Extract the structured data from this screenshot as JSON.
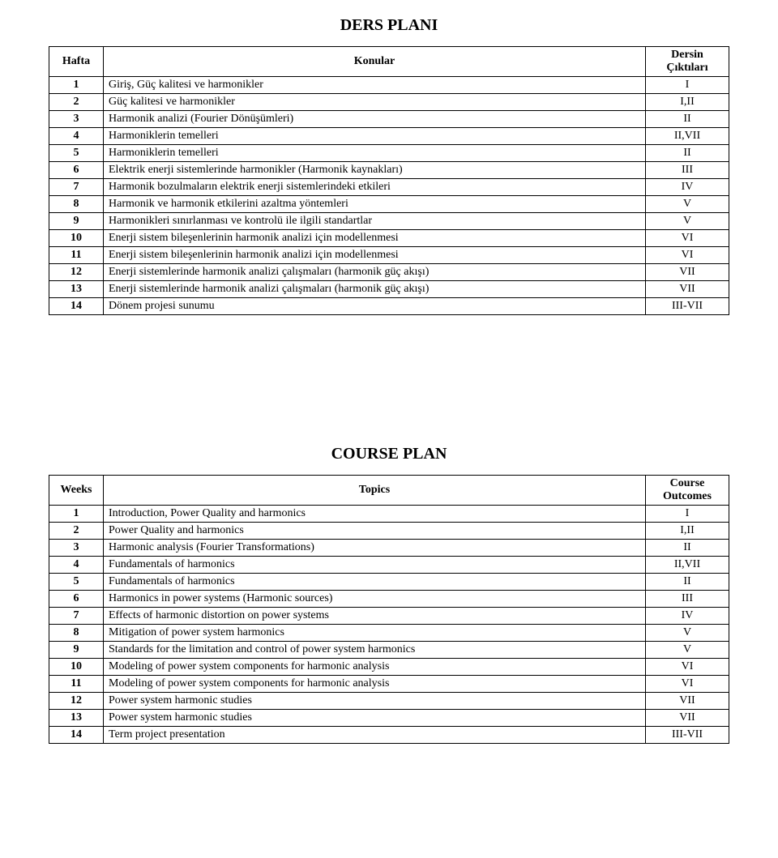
{
  "colors": {
    "background": "#ffffff",
    "text": "#000000",
    "border": "#000000"
  },
  "typography": {
    "font_family": "Times New Roman",
    "title_fontsize_pt": 15,
    "body_fontsize_pt": 11
  },
  "tables": {
    "ders": {
      "title": "DERS PLANI",
      "headers": {
        "num": "Hafta",
        "topic": "Konular",
        "outcome_line1": "Dersin",
        "outcome_line2": "Çıktıları"
      },
      "rows": [
        {
          "n": "1",
          "t": "Giriş, Güç kalitesi ve harmonikler",
          "o": "I"
        },
        {
          "n": "2",
          "t": "Güç kalitesi ve harmonikler",
          "o": "I,II"
        },
        {
          "n": "3",
          "t": "Harmonik analizi (Fourier Dönüşümleri)",
          "o": "II"
        },
        {
          "n": "4",
          "t": "Harmoniklerin temelleri",
          "o": "II,VII"
        },
        {
          "n": "5",
          "t": "Harmoniklerin temelleri",
          "o": "II"
        },
        {
          "n": "6",
          "t": "Elektrik enerji sistemlerinde harmonikler (Harmonik kaynakları)",
          "o": "III"
        },
        {
          "n": "7",
          "t": "Harmonik bozulmaların elektrik enerji sistemlerindeki etkileri",
          "o": "IV"
        },
        {
          "n": "8",
          "t": "Harmonik ve harmonik etkilerini azaltma yöntemleri",
          "o": "V"
        },
        {
          "n": "9",
          "t": "Harmonikleri sınırlanması ve kontrolü ile ilgili standartlar",
          "o": "V"
        },
        {
          "n": "10",
          "t": "Enerji sistem bileşenlerinin harmonik analizi için modellenmesi",
          "o": "VI"
        },
        {
          "n": "11",
          "t": "Enerji sistem bileşenlerinin harmonik analizi için modellenmesi",
          "o": "VI"
        },
        {
          "n": "12",
          "t": "Enerji sistemlerinde harmonik analizi çalışmaları (harmonik güç akışı)",
          "o": "VII"
        },
        {
          "n": "13",
          "t": "Enerji sistemlerinde harmonik analizi çalışmaları (harmonik güç akışı)",
          "o": "VII"
        },
        {
          "n": "14",
          "t": "Dönem projesi sunumu",
          "o": "III-VII"
        }
      ]
    },
    "course": {
      "title": "COURSE PLAN",
      "headers": {
        "num": "Weeks",
        "topic": "Topics",
        "outcome_line1": "Course",
        "outcome_line2": "Outcomes"
      },
      "rows": [
        {
          "n": "1",
          "t": "Introduction, Power Quality and harmonics",
          "o": "I"
        },
        {
          "n": "2",
          "t": "Power Quality and harmonics",
          "o": "I,II"
        },
        {
          "n": "3",
          "t": "Harmonic analysis (Fourier Transformations)",
          "o": "II"
        },
        {
          "n": "4",
          "t": "Fundamentals of harmonics",
          "o": "II,VII"
        },
        {
          "n": "5",
          "t": "Fundamentals of harmonics",
          "o": "II"
        },
        {
          "n": "6",
          "t": "Harmonics in power systems (Harmonic sources)",
          "o": "III"
        },
        {
          "n": "7",
          "t": "Effects of harmonic distortion on power systems",
          "o": "IV"
        },
        {
          "n": "8",
          "t": "Mitigation of power system harmonics",
          "o": "V"
        },
        {
          "n": "9",
          "t": "Standards for the limitation and control of power system harmonics",
          "o": "V"
        },
        {
          "n": "10",
          "t": "Modeling of power system components for harmonic analysis",
          "o": "VI"
        },
        {
          "n": "11",
          "t": "Modeling of power system components for harmonic analysis",
          "o": "VI"
        },
        {
          "n": "12",
          "t": "Power system harmonic studies",
          "o": "VII"
        },
        {
          "n": "13",
          "t": "Power system harmonic studies",
          "o": "VII"
        },
        {
          "n": "14",
          "t": "Term project presentation",
          "o": "III-VII"
        }
      ]
    }
  }
}
